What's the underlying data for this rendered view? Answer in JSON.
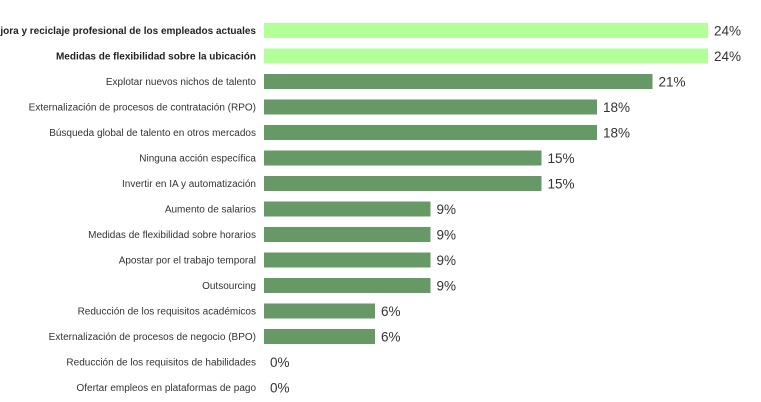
{
  "chart_data": {
    "type": "bar",
    "orientation": "horizontal",
    "title": "",
    "xlabel": "",
    "ylabel": "",
    "xlim": [
      0,
      24
    ],
    "grid": false,
    "legend": "none",
    "value_suffix": "%",
    "categories": [
      "Mejora y reciclaje profesional de los empleados actuales",
      "Medidas de flexibilidad sobre la ubicación",
      "Explotar nuevos nichos de talento",
      "Externalización de procesos de contratación (RPO)",
      "Búsqueda global de talento en otros mercados",
      "Ninguna acción específica",
      "Invertir en IA y automatización",
      "Aumento de salarios",
      "Medidas de flexibilidad sobre horarios",
      "Apostar por el trabajo temporal",
      "Outsourcing",
      "Reducción de los requisitos académicos",
      "Externalización de procesos de negocio (BPO)",
      "Reducción de los requisitos de habilidades",
      "Ofertar empleos en plataformas de pago"
    ],
    "values": [
      24,
      24,
      21,
      18,
      18,
      15,
      15,
      9,
      9,
      9,
      9,
      6,
      6,
      0,
      0
    ],
    "highlighted": [
      true,
      true,
      false,
      false,
      false,
      false,
      false,
      false,
      false,
      false,
      false,
      false,
      false,
      false,
      false
    ],
    "colors": {
      "highlight": "#b3ff99",
      "default": "#669966"
    }
  }
}
